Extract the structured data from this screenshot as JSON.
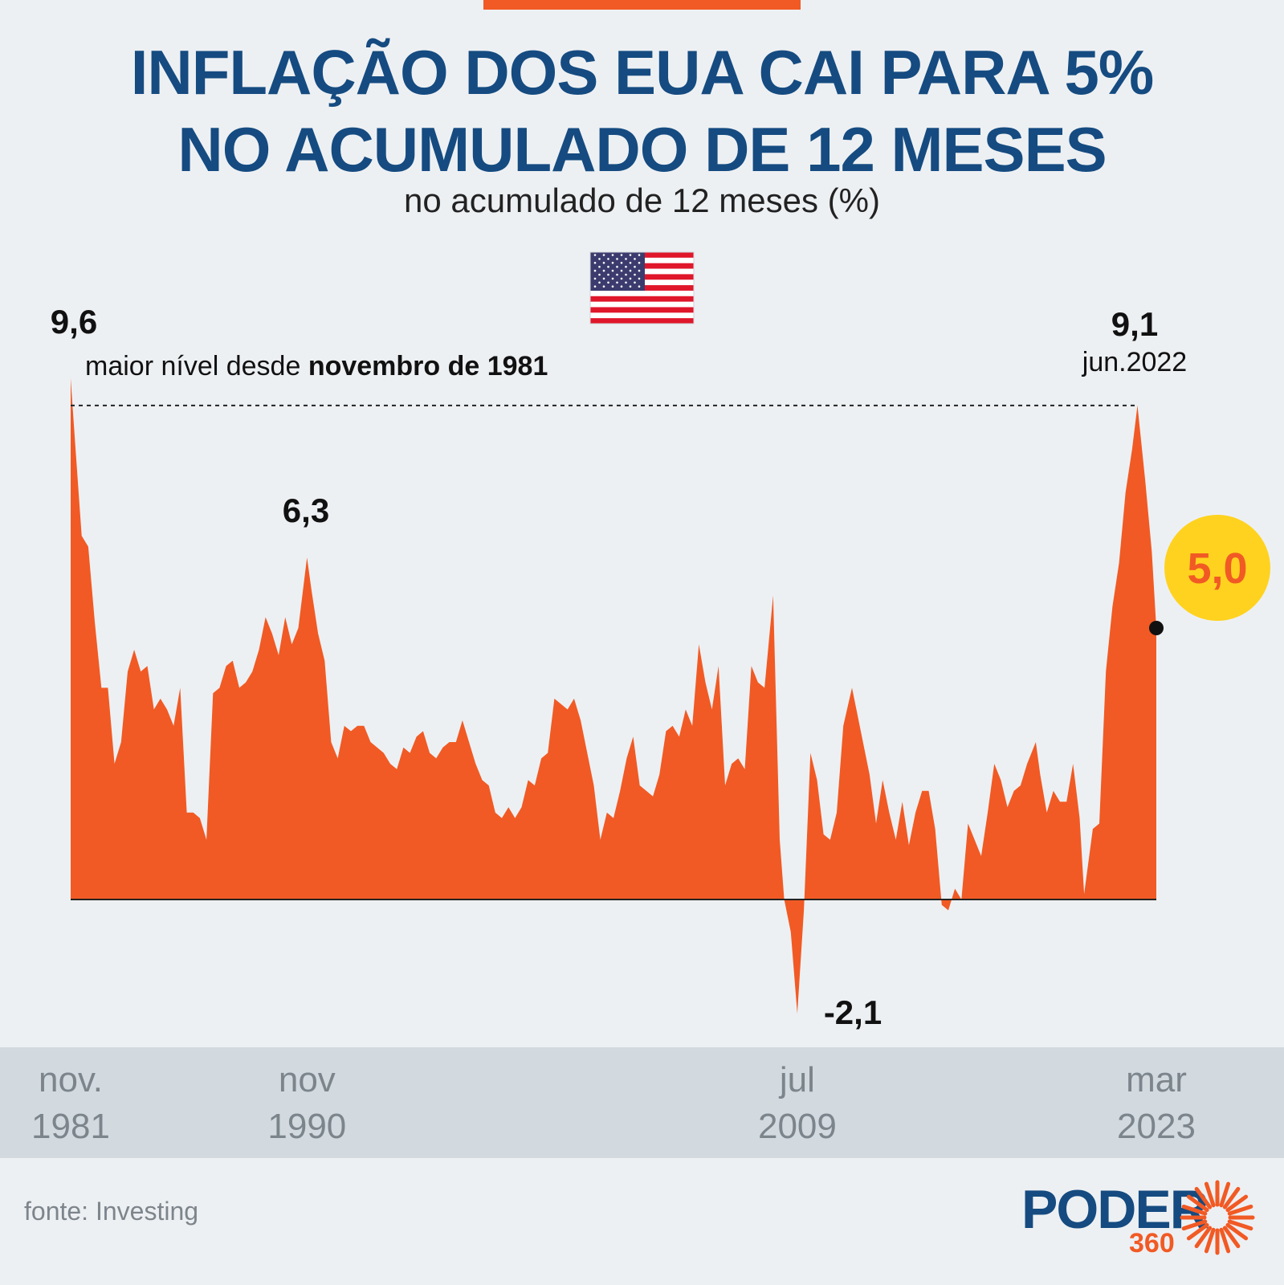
{
  "title_lines": [
    "INFLAÇÃO DOS EUA CAI PARA 5%",
    "NO ACUMULADO DE 12 MESES"
  ],
  "subtitle": "no acumulado de 12 meses (%)",
  "source": "fonte: Investing",
  "logo": {
    "word": "PODER",
    "number": "360"
  },
  "flag_icon": "usa-flag-icon",
  "colors": {
    "area": "#f15a24",
    "title": "#154b80",
    "highlight": "#ffd21f",
    "accent_text": "#f15a24"
  },
  "chart_data": {
    "type": "area",
    "x_axis_labels": [
      {
        "line1": "nov.",
        "line2": "1981",
        "year": 1981.83
      },
      {
        "line1": "nov",
        "line2": "1990",
        "year": 1990.83
      },
      {
        "line1": "jul",
        "line2": "2009",
        "year": 2009.5
      },
      {
        "line1": "mar",
        "line2": "2023",
        "year": 2023.17
      }
    ],
    "series": [
      {
        "values": [
          [
            1981.83,
            9.6
          ],
          [
            1982.0,
            8.4
          ],
          [
            1982.25,
            6.7
          ],
          [
            1982.5,
            6.5
          ],
          [
            1982.75,
            5.1
          ],
          [
            1983.0,
            3.9
          ],
          [
            1983.25,
            3.9
          ],
          [
            1983.5,
            2.5
          ],
          [
            1983.75,
            2.9
          ],
          [
            1984.0,
            4.2
          ],
          [
            1984.25,
            4.6
          ],
          [
            1984.5,
            4.2
          ],
          [
            1984.75,
            4.3
          ],
          [
            1985.0,
            3.5
          ],
          [
            1985.25,
            3.7
          ],
          [
            1985.5,
            3.5
          ],
          [
            1985.75,
            3.2
          ],
          [
            1986.0,
            3.9
          ],
          [
            1986.25,
            1.6
          ],
          [
            1986.5,
            1.6
          ],
          [
            1986.75,
            1.5
          ],
          [
            1987.0,
            1.1
          ],
          [
            1987.25,
            3.8
          ],
          [
            1987.5,
            3.9
          ],
          [
            1987.75,
            4.3
          ],
          [
            1988.0,
            4.4
          ],
          [
            1988.25,
            3.9
          ],
          [
            1988.5,
            4.0
          ],
          [
            1988.75,
            4.2
          ],
          [
            1989.0,
            4.6
          ],
          [
            1989.25,
            5.2
          ],
          [
            1989.5,
            4.9
          ],
          [
            1989.75,
            4.5
          ],
          [
            1990.0,
            5.2
          ],
          [
            1990.25,
            4.7
          ],
          [
            1990.5,
            5.0
          ],
          [
            1990.83,
            6.3
          ],
          [
            1991.0,
            5.7
          ],
          [
            1991.25,
            4.9
          ],
          [
            1991.5,
            4.4
          ],
          [
            1991.75,
            2.9
          ],
          [
            1992.0,
            2.6
          ],
          [
            1992.25,
            3.2
          ],
          [
            1992.5,
            3.1
          ],
          [
            1992.75,
            3.2
          ],
          [
            1993.0,
            3.2
          ],
          [
            1993.25,
            2.9
          ],
          [
            1993.5,
            2.8
          ],
          [
            1993.75,
            2.7
          ],
          [
            1994.0,
            2.5
          ],
          [
            1994.25,
            2.4
          ],
          [
            1994.5,
            2.8
          ],
          [
            1994.75,
            2.7
          ],
          [
            1995.0,
            3.0
          ],
          [
            1995.25,
            3.1
          ],
          [
            1995.5,
            2.7
          ],
          [
            1995.75,
            2.6
          ],
          [
            1996.0,
            2.8
          ],
          [
            1996.25,
            2.9
          ],
          [
            1996.5,
            2.9
          ],
          [
            1996.75,
            3.3
          ],
          [
            1997.0,
            2.9
          ],
          [
            1997.25,
            2.5
          ],
          [
            1997.5,
            2.2
          ],
          [
            1997.75,
            2.1
          ],
          [
            1998.0,
            1.6
          ],
          [
            1998.25,
            1.5
          ],
          [
            1998.5,
            1.7
          ],
          [
            1998.75,
            1.5
          ],
          [
            1999.0,
            1.7
          ],
          [
            1999.25,
            2.2
          ],
          [
            1999.5,
            2.1
          ],
          [
            1999.75,
            2.6
          ],
          [
            2000.0,
            2.7
          ],
          [
            2000.25,
            3.7
          ],
          [
            2000.5,
            3.6
          ],
          [
            2000.75,
            3.5
          ],
          [
            2001.0,
            3.7
          ],
          [
            2001.25,
            3.3
          ],
          [
            2001.5,
            2.7
          ],
          [
            2001.75,
            2.1
          ],
          [
            2002.0,
            1.1
          ],
          [
            2002.25,
            1.6
          ],
          [
            2002.5,
            1.5
          ],
          [
            2002.75,
            2.0
          ],
          [
            2003.0,
            2.6
          ],
          [
            2003.25,
            3.0
          ],
          [
            2003.5,
            2.1
          ],
          [
            2003.75,
            2.0
          ],
          [
            2004.0,
            1.9
          ],
          [
            2004.25,
            2.3
          ],
          [
            2004.5,
            3.1
          ],
          [
            2004.75,
            3.2
          ],
          [
            2005.0,
            3.0
          ],
          [
            2005.25,
            3.5
          ],
          [
            2005.5,
            3.2
          ],
          [
            2005.75,
            4.7
          ],
          [
            2006.0,
            4.0
          ],
          [
            2006.25,
            3.5
          ],
          [
            2006.5,
            4.3
          ],
          [
            2006.75,
            2.1
          ],
          [
            2007.0,
            2.5
          ],
          [
            2007.25,
            2.6
          ],
          [
            2007.5,
            2.4
          ],
          [
            2007.75,
            4.3
          ],
          [
            2008.0,
            4.0
          ],
          [
            2008.25,
            3.9
          ],
          [
            2008.58,
            5.6
          ],
          [
            2008.83,
            1.1
          ],
          [
            2009.0,
            0.0
          ],
          [
            2009.25,
            -0.6
          ],
          [
            2009.5,
            -2.1
          ],
          [
            2009.75,
            -0.2
          ],
          [
            2010.0,
            2.7
          ],
          [
            2010.25,
            2.2
          ],
          [
            2010.5,
            1.2
          ],
          [
            2010.75,
            1.1
          ],
          [
            2011.0,
            1.6
          ],
          [
            2011.25,
            3.2
          ],
          [
            2011.58,
            3.9
          ],
          [
            2011.75,
            3.5
          ],
          [
            2012.0,
            2.9
          ],
          [
            2012.25,
            2.3
          ],
          [
            2012.5,
            1.4
          ],
          [
            2012.75,
            2.2
          ],
          [
            2013.0,
            1.6
          ],
          [
            2013.25,
            1.1
          ],
          [
            2013.5,
            1.8
          ],
          [
            2013.75,
            1.0
          ],
          [
            2014.0,
            1.6
          ],
          [
            2014.25,
            2.0
          ],
          [
            2014.5,
            2.0
          ],
          [
            2014.75,
            1.3
          ],
          [
            2015.0,
            -0.1
          ],
          [
            2015.25,
            -0.2
          ],
          [
            2015.5,
            0.2
          ],
          [
            2015.75,
            0.0
          ],
          [
            2016.0,
            1.4
          ],
          [
            2016.25,
            1.1
          ],
          [
            2016.5,
            0.8
          ],
          [
            2016.75,
            1.6
          ],
          [
            2017.0,
            2.5
          ],
          [
            2017.25,
            2.2
          ],
          [
            2017.5,
            1.7
          ],
          [
            2017.75,
            2.0
          ],
          [
            2018.0,
            2.1
          ],
          [
            2018.25,
            2.5
          ],
          [
            2018.58,
            2.9
          ],
          [
            2018.75,
            2.3
          ],
          [
            2019.0,
            1.6
          ],
          [
            2019.25,
            2.0
          ],
          [
            2019.5,
            1.8
          ],
          [
            2019.75,
            1.8
          ],
          [
            2020.0,
            2.5
          ],
          [
            2020.25,
            1.5
          ],
          [
            2020.42,
            0.1
          ],
          [
            2020.75,
            1.3
          ],
          [
            2021.0,
            1.4
          ],
          [
            2021.25,
            4.2
          ],
          [
            2021.5,
            5.4
          ],
          [
            2021.75,
            6.2
          ],
          [
            2022.0,
            7.5
          ],
          [
            2022.25,
            8.3
          ],
          [
            2022.45,
            9.1
          ],
          [
            2022.75,
            7.7
          ],
          [
            2023.0,
            6.4
          ],
          [
            2023.17,
            5.0
          ]
        ]
      }
    ],
    "annotations": {
      "max": {
        "value": "9,6",
        "note_prefix": "maior nível desde ",
        "note_bold": "novembro de 1981"
      },
      "peak_1990": {
        "value": "6,3"
      },
      "min_2009": {
        "value": "-2,1"
      },
      "peak_2022": {
        "value": "9,1",
        "date": "jun.2022"
      },
      "last": {
        "value": "5,0"
      }
    },
    "xlim": [
      1981.83,
      2023.17
    ],
    "ylim": [
      -2.1,
      9.6
    ]
  }
}
